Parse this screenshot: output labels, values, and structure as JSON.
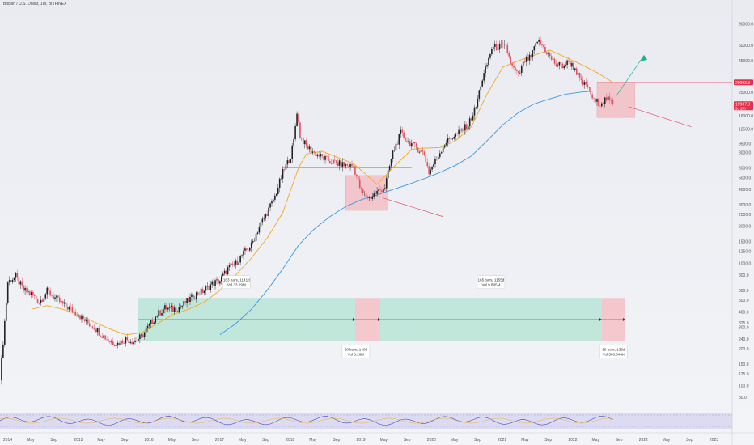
{
  "header": {
    "symbol_title": "Bitcoin / U.S. Dollar, 1W, BITFINEX"
  },
  "colors": {
    "up": "#222222",
    "down": "#e0505f",
    "ma_short": "#f5a623",
    "ma_long": "#3b9ae6",
    "green_zone": "#a8e0cd",
    "red_zone": "#f6b1b7",
    "resistance": "#e84d5b",
    "rsi_fill": "#c9c6ee",
    "price_badge_1": "#e5304a",
    "price_badge_2": "#e5304a"
  },
  "chart_data": {
    "type": "candlestick",
    "title": "Bitcoin / U.S. Dollar, 1W, BITFINEX",
    "yscale": "log",
    "ylim": [
      70,
      125000
    ],
    "y_axis_unit": "USD",
    "y_ticks": [
      "90000.0",
      "60000.0",
      "45000.0",
      "30000.0",
      "25000.0",
      "16000.0",
      "12500.0",
      "9500.0",
      "8000.0",
      "6000.0",
      "5000.0",
      "4000.0",
      "3000.0",
      "2500.0",
      "2000.0",
      "1500.0",
      "1250.0",
      "1000.0",
      "800.0",
      "600.0",
      "500.0",
      "400.0",
      "325.0",
      "300.0",
      "240.0",
      "200.0",
      "150.0",
      "125.0",
      "100.0",
      "80.0"
    ],
    "x_ticks": [
      "2014",
      "May",
      "Sep",
      "2015",
      "May",
      "Sep",
      "2016",
      "May",
      "Sep",
      "2017",
      "May",
      "Sep",
      "2018",
      "May",
      "Sep",
      "2019",
      "May",
      "Sep",
      "2020",
      "May",
      "Sep",
      "2021",
      "May",
      "Sep",
      "2022",
      "May",
      "Sep",
      "2022",
      "May",
      "Sep",
      "2023"
    ],
    "price_badges": [
      {
        "label": "29993.3"
      },
      {
        "label": "19907.3",
        "sub": "5d 19h"
      }
    ],
    "price_path": [
      [
        0,
        110
      ],
      [
        5,
        700
      ],
      [
        10,
        780
      ],
      [
        15,
        600
      ],
      [
        20,
        560
      ],
      [
        25,
        480
      ],
      [
        30,
        590
      ],
      [
        35,
        520
      ],
      [
        40,
        460
      ],
      [
        45,
        420
      ],
      [
        50,
        380
      ],
      [
        55,
        330
      ],
      [
        60,
        300
      ],
      [
        65,
        260
      ],
      [
        70,
        230
      ],
      [
        75,
        220
      ],
      [
        80,
        240
      ],
      [
        85,
        230
      ],
      [
        90,
        250
      ],
      [
        100,
        380
      ],
      [
        105,
        430
      ],
      [
        110,
        420
      ],
      [
        115,
        440
      ],
      [
        120,
        500
      ],
      [
        125,
        560
      ],
      [
        130,
        600
      ],
      [
        135,
        680
      ],
      [
        140,
        720
      ],
      [
        145,
        900
      ],
      [
        150,
        1000
      ],
      [
        155,
        1200
      ],
      [
        160,
        1400
      ],
      [
        165,
        2000
      ],
      [
        170,
        2600
      ],
      [
        175,
        3500
      ],
      [
        180,
        5500
      ],
      [
        185,
        7500
      ],
      [
        187,
        10000
      ],
      [
        189,
        17500
      ],
      [
        191,
        11000
      ],
      [
        195,
        9000
      ],
      [
        200,
        8000
      ],
      [
        205,
        7300
      ],
      [
        210,
        6800
      ],
      [
        215,
        6500
      ],
      [
        220,
        6300
      ],
      [
        225,
        6200
      ],
      [
        230,
        3800
      ],
      [
        235,
        3400
      ],
      [
        240,
        3800
      ],
      [
        245,
        4200
      ],
      [
        250,
        8000
      ],
      [
        255,
        11500
      ],
      [
        260,
        9800
      ],
      [
        265,
        8800
      ],
      [
        270,
        7800
      ],
      [
        273,
        5500
      ],
      [
        278,
        7200
      ],
      [
        283,
        9500
      ],
      [
        288,
        10800
      ],
      [
        293,
        11800
      ],
      [
        298,
        13500
      ],
      [
        303,
        19000
      ],
      [
        306,
        29000
      ],
      [
        309,
        38000
      ],
      [
        313,
        57000
      ],
      [
        318,
        59000
      ],
      [
        322,
        58000
      ],
      [
        326,
        40000
      ],
      [
        330,
        34000
      ],
      [
        334,
        45000
      ],
      [
        338,
        48000
      ],
      [
        342,
        66000
      ],
      [
        346,
        58000
      ],
      [
        350,
        48000
      ],
      [
        354,
        42000
      ],
      [
        358,
        41000
      ],
      [
        362,
        44000
      ],
      [
        366,
        39000
      ],
      [
        370,
        29500
      ],
      [
        374,
        28000
      ],
      [
        378,
        21000
      ],
      [
        382,
        20500
      ],
      [
        386,
        22000
      ],
      [
        390,
        20000
      ]
    ],
    "ma_short_path": [
      [
        20,
        420
      ],
      [
        30,
        450
      ],
      [
        40,
        420
      ],
      [
        50,
        380
      ],
      [
        60,
        330
      ],
      [
        70,
        290
      ],
      [
        80,
        260
      ],
      [
        90,
        270
      ],
      [
        100,
        320
      ],
      [
        110,
        380
      ],
      [
        120,
        420
      ],
      [
        130,
        480
      ],
      [
        140,
        600
      ],
      [
        150,
        800
      ],
      [
        160,
        1100
      ],
      [
        170,
        1600
      ],
      [
        180,
        2600
      ],
      [
        190,
        6000
      ],
      [
        195,
        7800
      ],
      [
        205,
        8200
      ],
      [
        215,
        7300
      ],
      [
        225,
        6500
      ],
      [
        233,
        5300
      ],
      [
        240,
        4400
      ],
      [
        250,
        6000
      ],
      [
        262,
        8500
      ],
      [
        270,
        8700
      ],
      [
        280,
        8800
      ],
      [
        290,
        10000
      ],
      [
        300,
        13000
      ],
      [
        310,
        24000
      ],
      [
        320,
        40000
      ],
      [
        330,
        45000
      ],
      [
        340,
        50000
      ],
      [
        350,
        55000
      ],
      [
        360,
        48000
      ],
      [
        370,
        42000
      ],
      [
        380,
        36000
      ],
      [
        390,
        30000
      ]
    ],
    "ma_long_path": [
      [
        140,
        260
      ],
      [
        150,
        320
      ],
      [
        160,
        420
      ],
      [
        170,
        600
      ],
      [
        180,
        900
      ],
      [
        190,
        1400
      ],
      [
        200,
        1900
      ],
      [
        210,
        2400
      ],
      [
        220,
        2900
      ],
      [
        230,
        3300
      ],
      [
        240,
        3600
      ],
      [
        250,
        4000
      ],
      [
        260,
        4400
      ],
      [
        270,
        4900
      ],
      [
        280,
        5500
      ],
      [
        290,
        6300
      ],
      [
        300,
        7500
      ],
      [
        310,
        10000
      ],
      [
        320,
        13500
      ],
      [
        330,
        17000
      ],
      [
        340,
        20000
      ],
      [
        350,
        22000
      ],
      [
        360,
        24000
      ],
      [
        370,
        25000
      ],
      [
        378,
        25500
      ]
    ],
    "ranges": [
      {
        "label_bars": "163 bars, 1141d",
        "label_vol": "Vol 33.29M",
        "zone": "green",
        "y_range": [
          230,
          520
        ],
        "x_range": [
          88,
          226
        ]
      },
      {
        "label_bars": "20 bars, 140d",
        "label_vol": "Vol 3.26M",
        "zone": "red",
        "y_range": [
          230,
          520
        ],
        "x_range": [
          226,
          242
        ]
      },
      {
        "label_bars": "165 bars, 1155d",
        "label_vol": "Vol 9.895M",
        "zone": "green",
        "y_range": [
          230,
          520
        ],
        "x_range": [
          242,
          383
        ]
      },
      {
        "label_bars": "19 bars, 133d",
        "label_vol": "Vol 583.044K",
        "zone": "red",
        "y_range": [
          230,
          520
        ],
        "x_range": [
          383,
          398
        ]
      }
    ],
    "boxes": [
      {
        "zone": "red",
        "x_range": [
          220,
          247
        ],
        "y_range": [
          2700,
          5200
        ]
      },
      {
        "zone": "red",
        "x_range": [
          380,
          404
        ],
        "y_range": [
          15500,
          30000
        ]
      }
    ],
    "levels": [
      {
        "y": 29993.3,
        "x_range": [
          380,
          466
        ]
      },
      {
        "y": 19907.3,
        "x_range": [
          0,
          466
        ]
      },
      {
        "y": 6000,
        "x_range": [
          180,
          262
        ]
      }
    ],
    "rsi": {
      "top": 70,
      "bottom": 30
    }
  }
}
